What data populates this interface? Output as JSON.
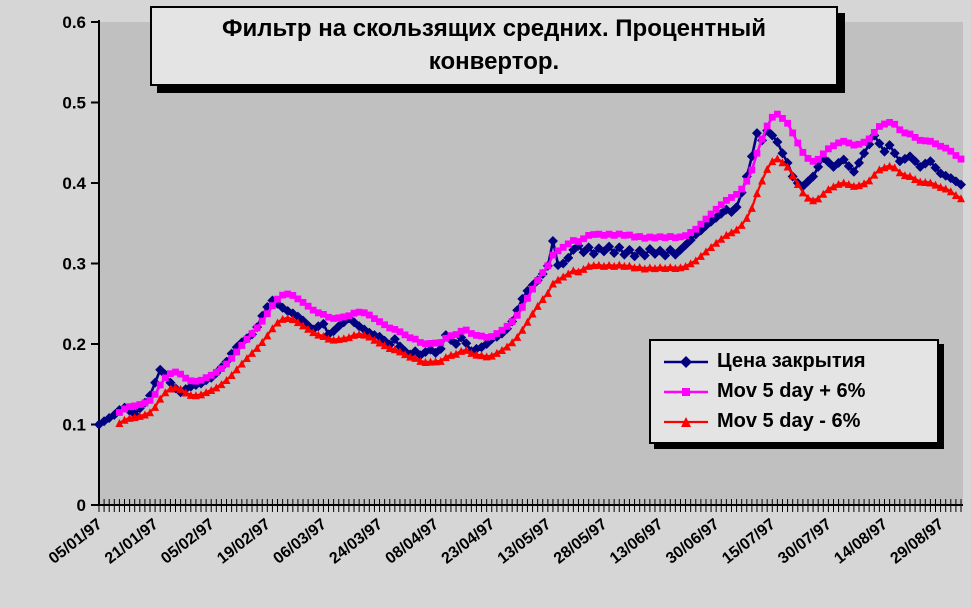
{
  "chart": {
    "title": "Фильтр на скользящих средних. Процентный конвертор.",
    "title_lines": [
      "Фильтр на скользящих средних. Процентный",
      "конвертор."
    ]
  },
  "chart_data": {
    "type": "line",
    "title": "Фильтр на скользящих средних. Процентный конвертор.",
    "xlabel": "",
    "ylabel": "",
    "ylim": [
      0,
      0.6
    ],
    "y_tick_labels": [
      "0",
      "0.1",
      "0.2",
      "0.3",
      "0.4",
      "0.5",
      "0.6"
    ],
    "grid": false,
    "plot_background": "#c0c0c0",
    "outer_background": "#d6d6d6",
    "legend_position": "middle-right",
    "x_labels": [
      "05/01/97",
      "21/01/97",
      "05/02/97",
      "19/02/97",
      "06/03/97",
      "24/03/97",
      "08/04/97",
      "23/04/97",
      "13/05/97",
      "28/05/97",
      "13/06/97",
      "30/06/97",
      "15/07/97",
      "30/07/97",
      "14/08/97",
      "29/08/97"
    ],
    "x_label_every": 11,
    "n_points": 170,
    "series": [
      {
        "name": "Цена закрытия",
        "color": "#000080",
        "marker": "diamond",
        "values": [
          0.1,
          0.104,
          0.108,
          0.112,
          0.118,
          0.121,
          0.117,
          0.113,
          0.12,
          0.127,
          0.136,
          0.152,
          0.168,
          0.162,
          0.152,
          0.145,
          0.14,
          0.144,
          0.147,
          0.149,
          0.151,
          0.155,
          0.158,
          0.164,
          0.171,
          0.178,
          0.188,
          0.196,
          0.202,
          0.207,
          0.212,
          0.221,
          0.235,
          0.246,
          0.254,
          0.25,
          0.245,
          0.241,
          0.238,
          0.234,
          0.229,
          0.223,
          0.218,
          0.222,
          0.225,
          0.212,
          0.216,
          0.222,
          0.227,
          0.232,
          0.227,
          0.222,
          0.218,
          0.214,
          0.211,
          0.209,
          0.204,
          0.199,
          0.206,
          0.197,
          0.191,
          0.187,
          0.191,
          0.186,
          0.19,
          0.193,
          0.189,
          0.194,
          0.211,
          0.205,
          0.2,
          0.208,
          0.201,
          0.191,
          0.194,
          0.196,
          0.2,
          0.206,
          0.209,
          0.213,
          0.219,
          0.228,
          0.242,
          0.256,
          0.266,
          0.273,
          0.279,
          0.287,
          0.297,
          0.328,
          0.298,
          0.3,
          0.307,
          0.317,
          0.322,
          0.314,
          0.32,
          0.312,
          0.319,
          0.315,
          0.321,
          0.313,
          0.32,
          0.311,
          0.317,
          0.309,
          0.316,
          0.31,
          0.318,
          0.312,
          0.316,
          0.31,
          0.317,
          0.311,
          0.317,
          0.323,
          0.329,
          0.336,
          0.341,
          0.347,
          0.352,
          0.357,
          0.362,
          0.367,
          0.364,
          0.37,
          0.388,
          0.408,
          0.433,
          0.462,
          0.453,
          0.465,
          0.459,
          0.451,
          0.437,
          0.425,
          0.408,
          0.4,
          0.396,
          0.402,
          0.408,
          0.42,
          0.431,
          0.426,
          0.42,
          0.425,
          0.429,
          0.421,
          0.414,
          0.425,
          0.437,
          0.448,
          0.459,
          0.449,
          0.439,
          0.447,
          0.437,
          0.427,
          0.43,
          0.433,
          0.427,
          0.42,
          0.424,
          0.427,
          0.419,
          0.412,
          0.409,
          0.406,
          0.402,
          0.398
        ]
      },
      {
        "name": "Mov 5 day + 6%",
        "color": "#FF00FF",
        "marker": "square",
        "derived_from": "Цена закрытия",
        "transform": "5-day trailing moving average * 1.06"
      },
      {
        "name": "Mov 5 day - 6%",
        "color": "#FF0000",
        "marker": "triangle",
        "derived_from": "Цена закрытия",
        "transform": "5-day trailing moving average * 0.94"
      }
    ]
  }
}
